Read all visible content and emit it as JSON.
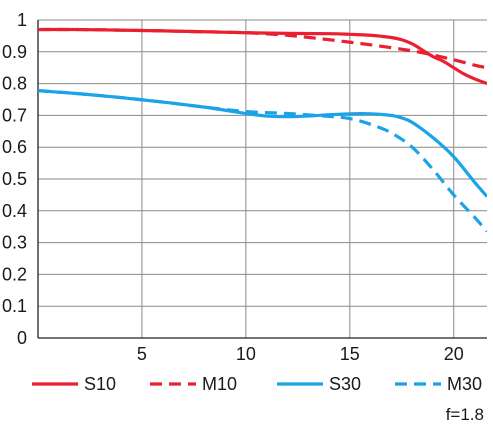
{
  "chart_data": {
    "type": "line",
    "xlim": [
      0,
      21.6
    ],
    "ylim": [
      0,
      1
    ],
    "x_ticks": [
      "5",
      "10",
      "15",
      "20"
    ],
    "y_ticks": [
      "0",
      "0.1",
      "0.2",
      "0.3",
      "0.4",
      "0.5",
      "0.6",
      "0.7",
      "0.8",
      "0.9",
      "1"
    ],
    "grid": true,
    "legend_position": "bottom",
    "series": [
      {
        "name": "S10",
        "color": "#e8202f",
        "dash": "solid",
        "points": [
          [
            0,
            0.97
          ],
          [
            2,
            0.97
          ],
          [
            5,
            0.967
          ],
          [
            8,
            0.963
          ],
          [
            10,
            0.96
          ],
          [
            12,
            0.958
          ],
          [
            14,
            0.957
          ],
          [
            15,
            0.955
          ],
          [
            16,
            0.952
          ],
          [
            17,
            0.945
          ],
          [
            17.5,
            0.938
          ],
          [
            18,
            0.925
          ],
          [
            18.5,
            0.905
          ],
          [
            19,
            0.885
          ],
          [
            19.5,
            0.87
          ],
          [
            20,
            0.85
          ],
          [
            20.5,
            0.83
          ],
          [
            21,
            0.815
          ],
          [
            21.6,
            0.8
          ]
        ]
      },
      {
        "name": "M10",
        "color": "#e8202f",
        "dash": "dashed",
        "points": [
          [
            0,
            0.97
          ],
          [
            2,
            0.97
          ],
          [
            5,
            0.967
          ],
          [
            8,
            0.963
          ],
          [
            10,
            0.96
          ],
          [
            12,
            0.952
          ],
          [
            14,
            0.938
          ],
          [
            16,
            0.922
          ],
          [
            18,
            0.903
          ],
          [
            19,
            0.89
          ],
          [
            20,
            0.875
          ],
          [
            21,
            0.858
          ],
          [
            21.6,
            0.85
          ]
        ]
      },
      {
        "name": "S30",
        "color": "#1aa3e8",
        "dash": "solid",
        "points": [
          [
            0,
            0.778
          ],
          [
            2,
            0.768
          ],
          [
            4,
            0.756
          ],
          [
            6,
            0.742
          ],
          [
            8,
            0.726
          ],
          [
            10,
            0.706
          ],
          [
            11,
            0.698
          ],
          [
            12,
            0.696
          ],
          [
            13,
            0.698
          ],
          [
            14,
            0.702
          ],
          [
            15,
            0.705
          ],
          [
            16,
            0.705
          ],
          [
            17,
            0.7
          ],
          [
            17.5,
            0.692
          ],
          [
            18,
            0.678
          ],
          [
            19,
            0.63
          ],
          [
            20,
            0.57
          ],
          [
            21,
            0.49
          ],
          [
            21.6,
            0.445
          ]
        ]
      },
      {
        "name": "M30",
        "color": "#1aa3e8",
        "dash": "dashed",
        "points": [
          [
            0,
            0.778
          ],
          [
            2,
            0.768
          ],
          [
            4,
            0.756
          ],
          [
            6,
            0.742
          ],
          [
            8,
            0.726
          ],
          [
            10,
            0.712
          ],
          [
            12,
            0.706
          ],
          [
            14,
            0.697
          ],
          [
            15,
            0.69
          ],
          [
            16,
            0.672
          ],
          [
            17,
            0.645
          ],
          [
            18,
            0.6
          ],
          [
            19,
            0.53
          ],
          [
            20,
            0.45
          ],
          [
            21,
            0.38
          ],
          [
            21.6,
            0.335
          ]
        ]
      }
    ],
    "annotation": "f=1.8"
  }
}
